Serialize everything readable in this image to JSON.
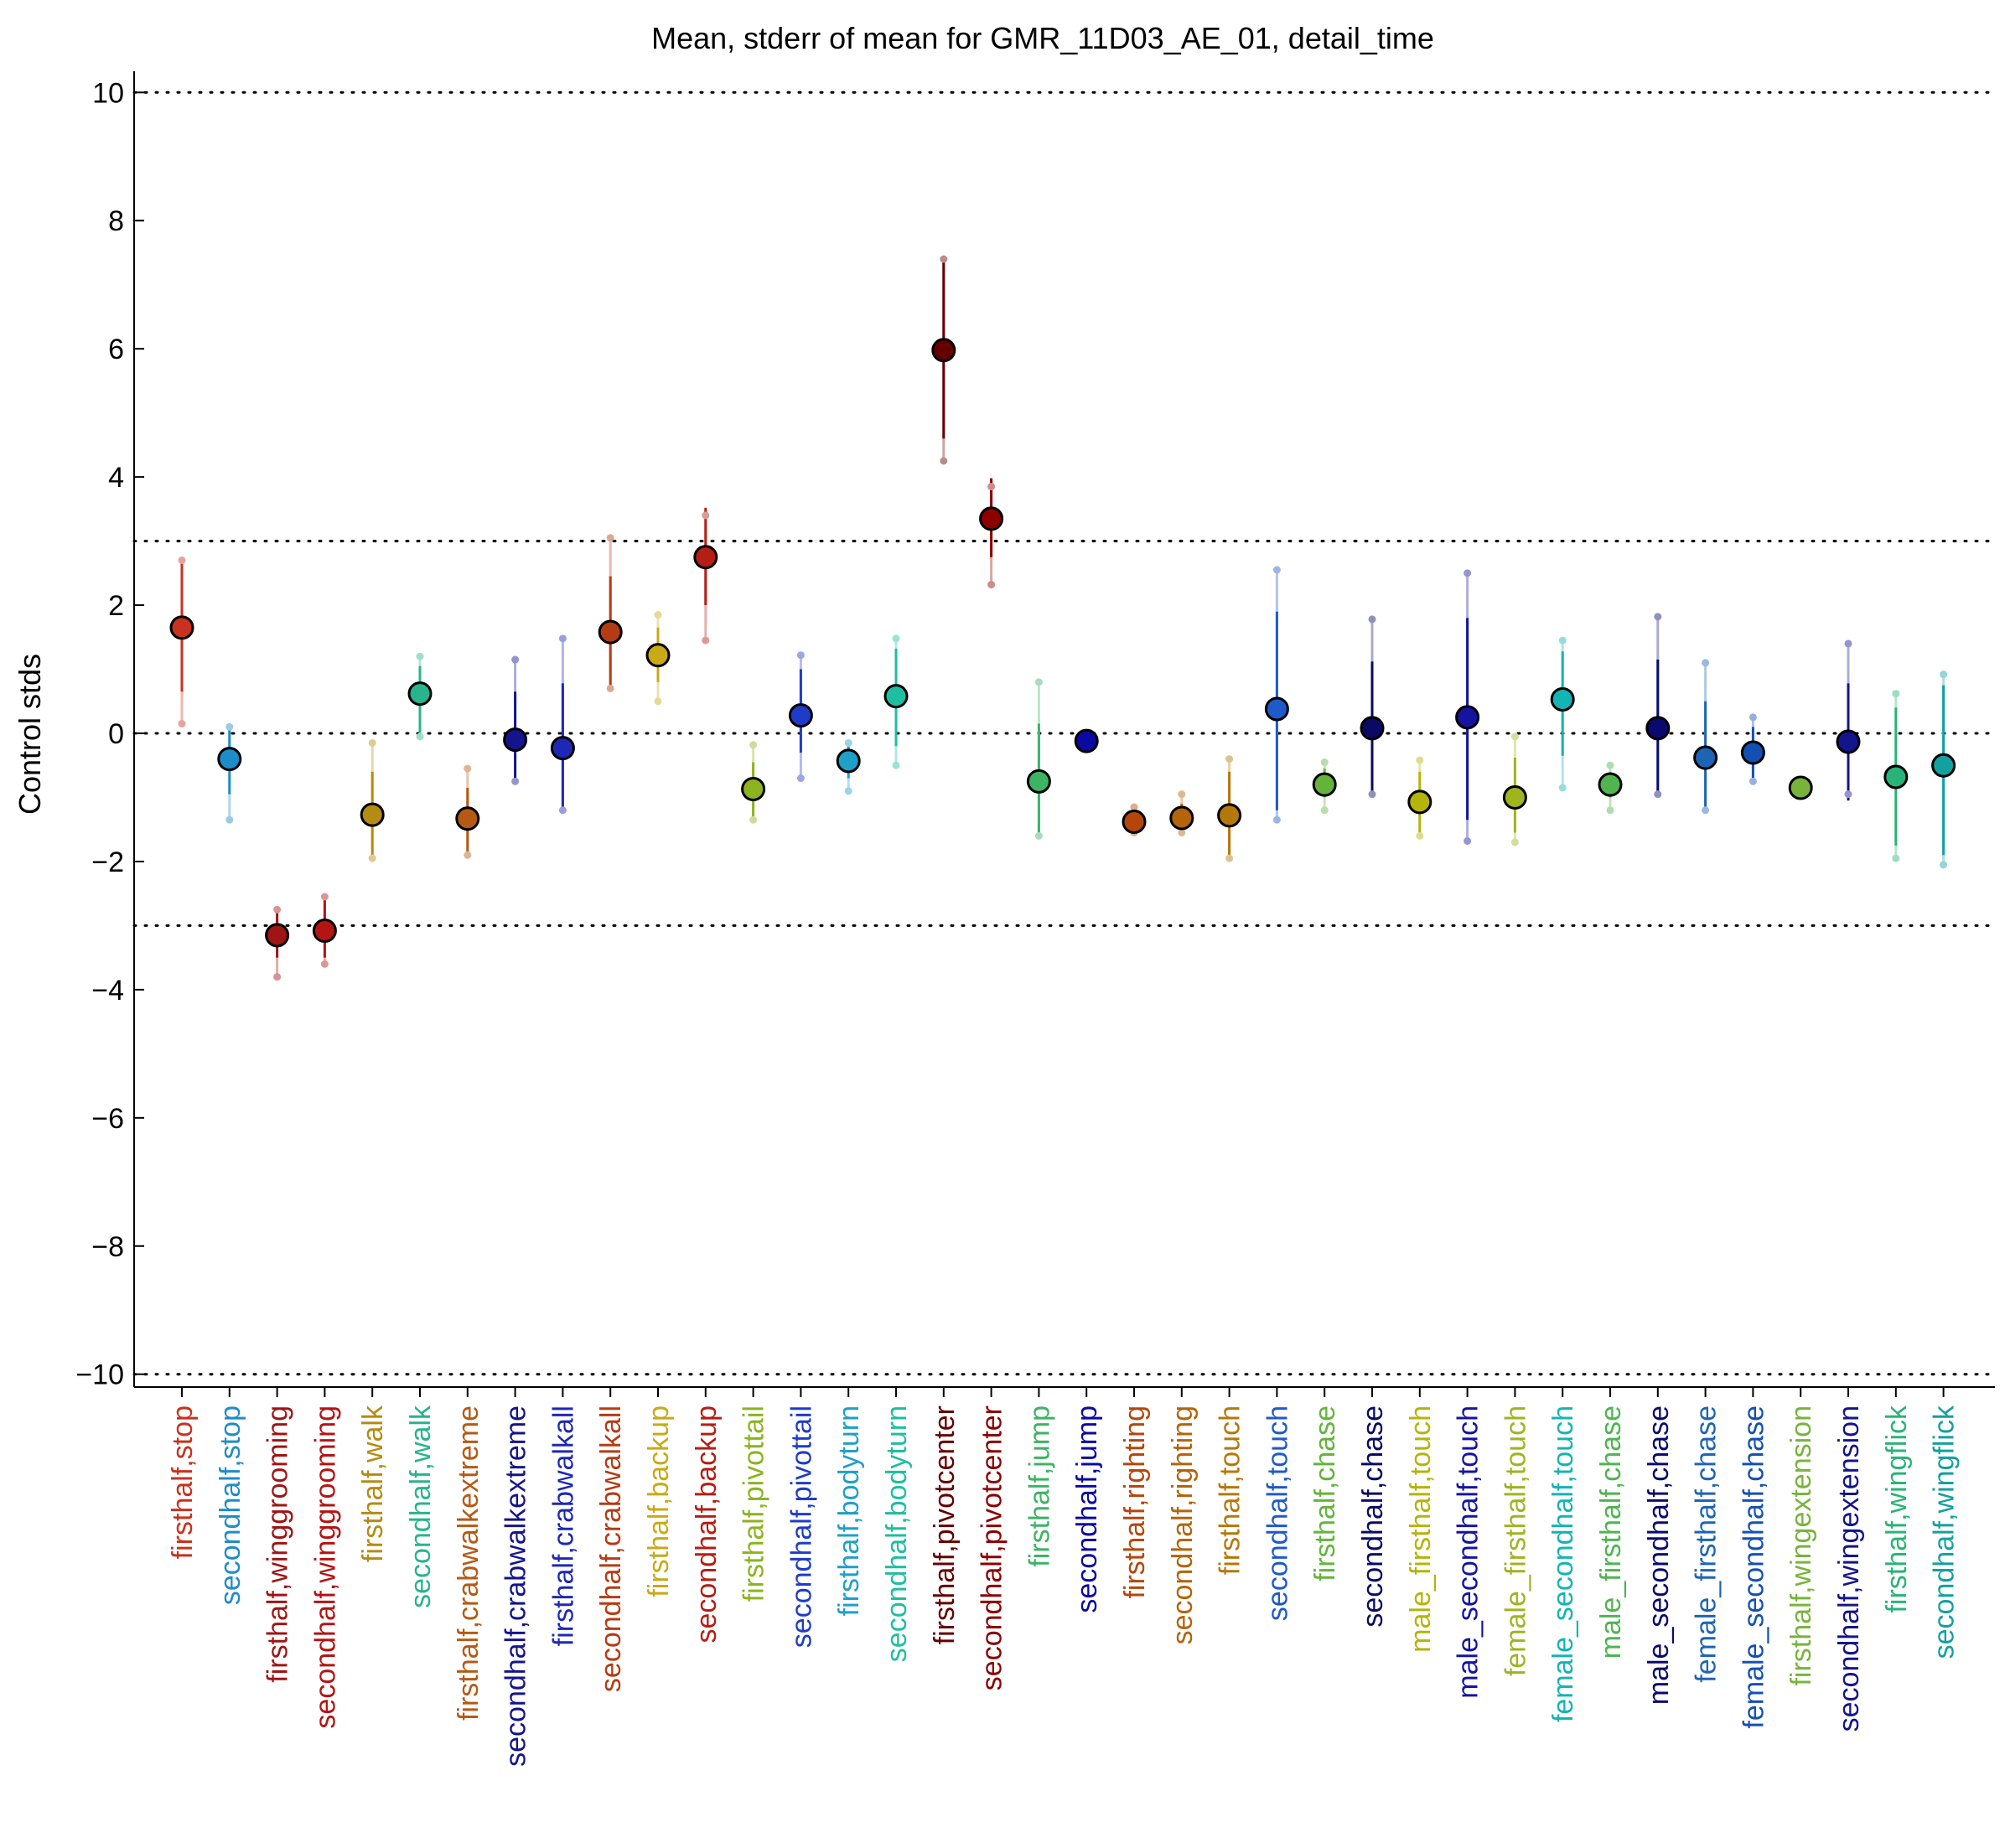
{
  "chart_data": {
    "type": "scatter",
    "title": "Mean, stderr of mean for GMR_11D03_AE_01, detail_time",
    "xlabel": "",
    "ylabel": "Control stds",
    "ylim": [
      -10.2,
      10.2
    ],
    "yticks": [
      -10,
      -8,
      -6,
      -4,
      -2,
      0,
      2,
      4,
      6,
      8,
      10
    ],
    "reference_lines": [
      -10,
      -3,
      0,
      3,
      10
    ],
    "grid": false,
    "legend": "none",
    "categories": [
      "firsthalf,stop",
      "secondhalf,stop",
      "firsthalf,winggrooming",
      "secondhalf,winggrooming",
      "firsthalf,walk",
      "secondhalf,walk",
      "firsthalf,crabwalkextreme",
      "secondhalf,crabwalkextreme",
      "firsthalf,crabwalkall",
      "secondhalf,crabwalkall",
      "firsthalf,backup",
      "secondhalf,backup",
      "firsthalf,pivottail",
      "secondhalf,pivottail",
      "firsthalf,bodyturn",
      "secondhalf,bodyturn",
      "firsthalf,pivotcenter",
      "secondhalf,pivotcenter",
      "firsthalf,jump",
      "secondhalf,jump",
      "firsthalf,righting",
      "secondhalf,righting",
      "firsthalf,touch",
      "secondhalf,touch",
      "firsthalf,chase",
      "secondhalf,chase",
      "male_firsthalf,touch",
      "male_secondhalf,touch",
      "female_firsthalf,touch",
      "female_secondhalf,touch",
      "male_firsthalf,chase",
      "male_secondhalf,chase",
      "female_firsthalf,chase",
      "female_secondhalf,chase",
      "firsthalf,wingextension",
      "secondhalf,wingextension",
      "firsthalf,wingflick",
      "secondhalf,wingflick"
    ],
    "colors": [
      "#c8321e",
      "#1e8cc8",
      "#a01414",
      "#b41414",
      "#b48c14",
      "#28b48c",
      "#b45a14",
      "#14148c",
      "#1e28b4",
      "#b43c14",
      "#c8aa14",
      "#b41e14",
      "#8cb41e",
      "#1e3cc8",
      "#1ea0c8",
      "#1ebea0",
      "#640000",
      "#8c0000",
      "#3cb464",
      "#0a0aa0",
      "#b4460a",
      "#b4640a",
      "#b4780a",
      "#1e5ac8",
      "#64b43c",
      "#0a0a64",
      "#b4b40a",
      "#1414a0",
      "#a0b41e",
      "#14b4b4",
      "#50b450",
      "#0a0a6e",
      "#1e64b4",
      "#1450b4",
      "#78b43c",
      "#14148c",
      "#28b478",
      "#14a0a0"
    ],
    "mean": [
      1.65,
      -0.4,
      -3.15,
      -3.08,
      -1.27,
      0.62,
      -1.33,
      -0.1,
      -0.23,
      1.58,
      1.22,
      2.75,
      -0.87,
      0.28,
      -0.43,
      0.58,
      5.98,
      3.35,
      -0.75,
      -0.12,
      -1.38,
      -1.32,
      -1.28,
      0.38,
      -0.8,
      0.08,
      -1.07,
      0.25,
      -1.0,
      0.53,
      -0.8,
      0.08,
      -0.38,
      -0.3,
      -0.85,
      -0.13,
      -0.68,
      -0.5
    ],
    "stderr_low": [
      0.65,
      -0.95,
      -3.5,
      -3.5,
      -1.9,
      0.0,
      -1.85,
      -0.8,
      -1.25,
      0.7,
      0.8,
      2.0,
      -1.3,
      -0.3,
      -0.7,
      -0.2,
      4.6,
      2.75,
      -1.6,
      -0.2,
      -1.5,
      -1.5,
      -1.9,
      -1.2,
      -1.0,
      -1.0,
      -1.6,
      -1.35,
      -1.55,
      -0.35,
      -1.0,
      -1.0,
      -1.25,
      -0.7,
      -0.95,
      -1.05,
      -1.75,
      -1.9
    ],
    "stderr_high": [
      2.65,
      0.15,
      -2.75,
      -2.6,
      -0.6,
      1.05,
      -0.85,
      0.65,
      0.78,
      2.45,
      1.65,
      3.52,
      -0.45,
      1.0,
      -0.2,
      1.32,
      7.35,
      3.98,
      0.15,
      -0.05,
      -1.25,
      -1.1,
      -0.6,
      1.9,
      -0.55,
      1.12,
      -0.6,
      1.8,
      -0.38,
      1.28,
      -0.6,
      1.15,
      0.5,
      0.1,
      -0.75,
      0.78,
      0.4,
      0.75
    ],
    "extreme_low": [
      0.15,
      -1.35,
      -3.8,
      -3.6,
      -1.95,
      -0.05,
      -1.9,
      -0.75,
      -1.2,
      0.7,
      0.5,
      1.45,
      -1.35,
      -0.7,
      -0.9,
      -0.5,
      4.25,
      2.32,
      -1.6,
      -0.2,
      -1.55,
      -1.55,
      -1.95,
      -1.35,
      -1.2,
      -0.95,
      -1.6,
      -1.68,
      -1.7,
      -0.85,
      -1.2,
      -0.95,
      -1.2,
      -0.75,
      -0.95,
      -0.95,
      -1.95,
      -2.05
    ],
    "extreme_high": [
      2.7,
      0.1,
      -2.75,
      -2.55,
      -0.15,
      1.2,
      -0.55,
      1.15,
      1.48,
      3.05,
      1.85,
      3.4,
      -0.18,
      1.22,
      -0.15,
      1.48,
      7.4,
      3.85,
      0.8,
      -0.05,
      -1.15,
      -0.95,
      -0.4,
      2.55,
      -0.45,
      1.78,
      -0.42,
      2.5,
      -0.05,
      1.45,
      -0.5,
      1.82,
      1.1,
      0.25,
      -0.75,
      1.4,
      0.62,
      0.92
    ]
  }
}
